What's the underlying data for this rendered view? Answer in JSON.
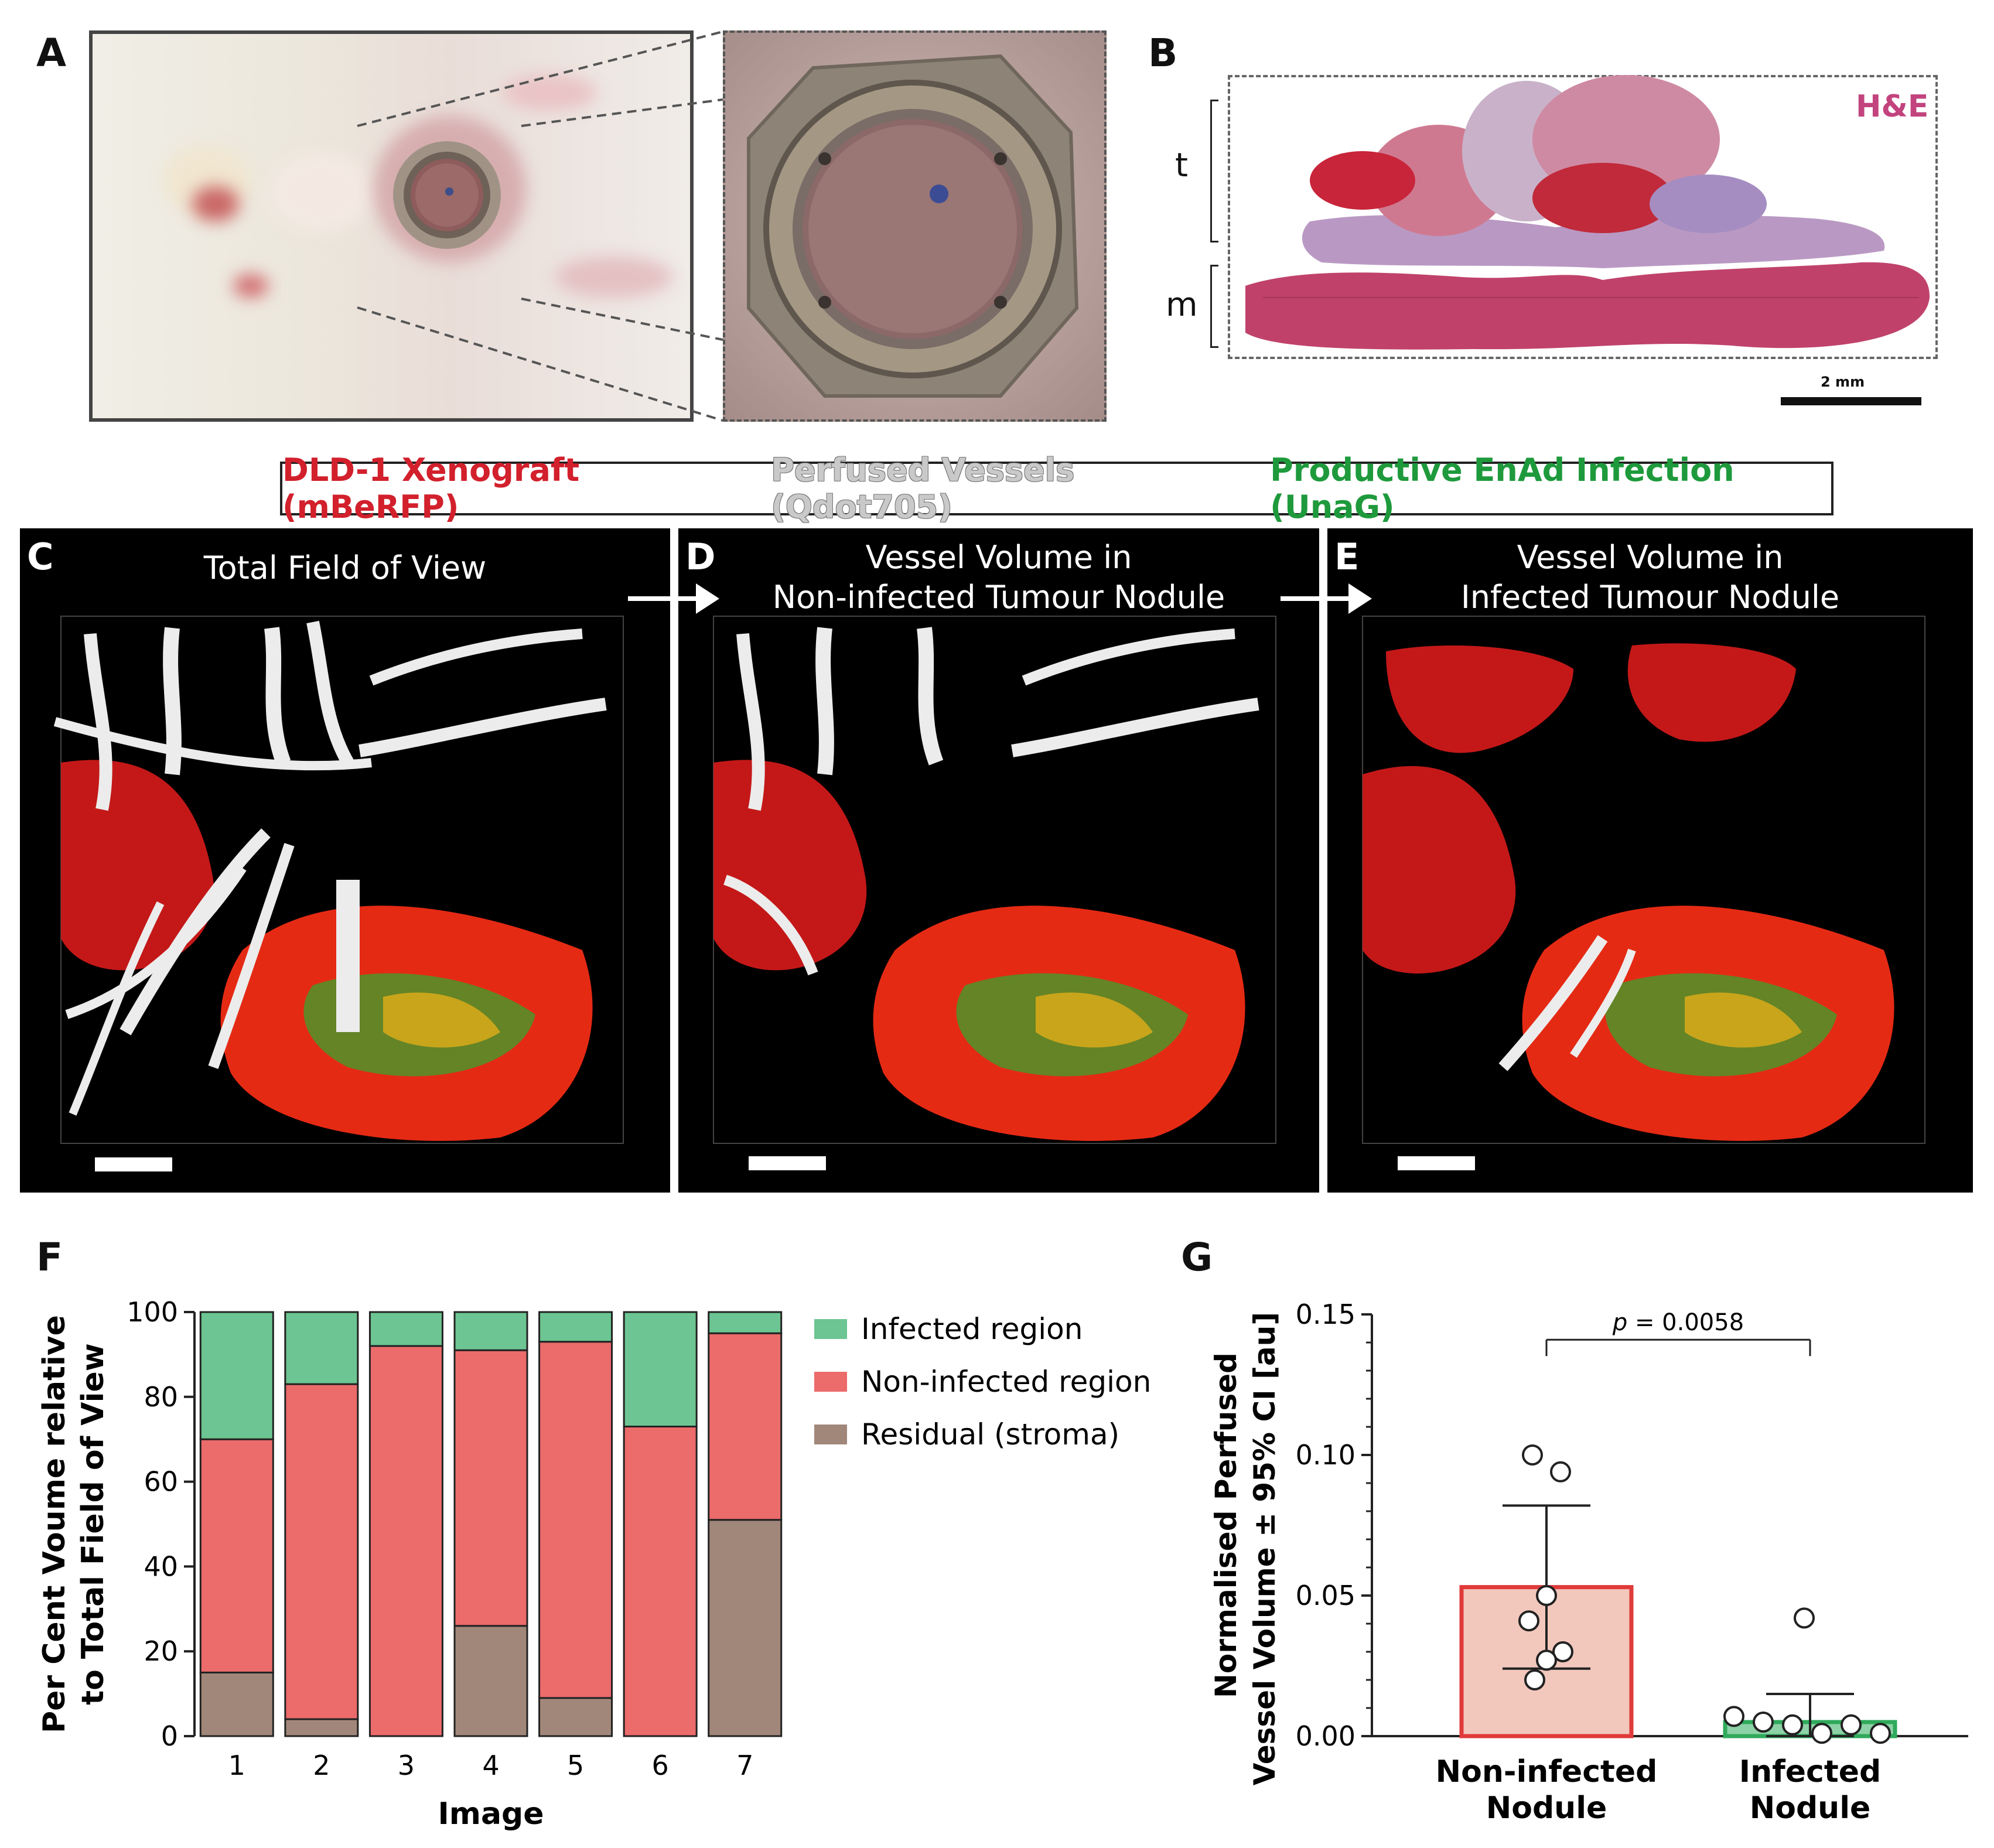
{
  "panels": {
    "A": "A",
    "B": "B",
    "C": "C",
    "D": "D",
    "E": "E",
    "F": "F",
    "G": "G"
  },
  "panelB": {
    "stain_label": "H&E",
    "bracket_t": "t",
    "bracket_m": "m",
    "scale_label": "2 mm"
  },
  "legend": {
    "xenograft": "DLD-1 Xenograft (mBeRFP)",
    "vessels": "Perfused Vessels (Qdot705)",
    "infection": "Productive EnAd Infection (UnaG)"
  },
  "micro": {
    "c_title": "Total Field of View",
    "d_title_1": "Vessel Volume in",
    "d_title_2": "Non-infected Tumour Nodule",
    "e_title_1": "Vessel Volume in",
    "e_title_2": "Infected Tumour Nodule"
  },
  "colors": {
    "infected": "#6cc592",
    "noninfected": "#ec6b6b",
    "residual": "#a1877a",
    "bar_g_noninfected_fill": "#f2c7bc",
    "bar_g_noninfected_edge": "#e03a3a",
    "bar_g_infected_fill": "#8dd1a6",
    "bar_g_infected_edge": "#2faa5b",
    "he_pink": "#c2437e"
  },
  "chart_data": [
    {
      "type": "bar",
      "stacked": true,
      "categories": [
        "1",
        "2",
        "3",
        "4",
        "5",
        "6",
        "7"
      ],
      "series": [
        {
          "name": "Residual (stroma)",
          "values": [
            15,
            4,
            0,
            26,
            9,
            0,
            51
          ]
        },
        {
          "name": "Non-infected region",
          "values": [
            55,
            79,
            92,
            65,
            84,
            73,
            44
          ]
        },
        {
          "name": "Infected region",
          "values": [
            30,
            17,
            8,
            9,
            7,
            27,
            5
          ]
        }
      ],
      "legend_order": [
        "Infected region",
        "Non-infected region",
        "Residual (stroma)"
      ],
      "xlabel": "Image",
      "ylabel_1": "Per Cent Voume relative",
      "ylabel_2": "to Total Field of View",
      "ylim": [
        0,
        100
      ],
      "yticks": [
        0,
        20,
        40,
        60,
        80,
        100
      ],
      "legend_position": "right"
    },
    {
      "type": "bar",
      "categories": [
        "Non-infected Nodule",
        "Infected Nodule"
      ],
      "category_lines": [
        [
          "Non-infected",
          "Nodule"
        ],
        [
          "Infected",
          "Nodule"
        ]
      ],
      "values": [
        0.053,
        0.005
      ],
      "ci_upper": [
        0.082,
        0.015
      ],
      "ci_lower": [
        0.024,
        0.0
      ],
      "points": [
        [
          0.1,
          0.094,
          0.05,
          0.041,
          0.03,
          0.027,
          0.02
        ],
        [
          0.042,
          0.007,
          0.005,
          0.004,
          0.004,
          0.001,
          0.001
        ]
      ],
      "ylabel_1": "Normalised Perfused",
      "ylabel_2": "Vessel Volume  ± 95% CI [au]",
      "ylim": [
        0,
        0.15
      ],
      "yticks": [
        "0.00",
        "0.05",
        "0.10",
        "0.15"
      ],
      "annotation_p": "p",
      "annotation_value": " = 0.0058"
    }
  ]
}
